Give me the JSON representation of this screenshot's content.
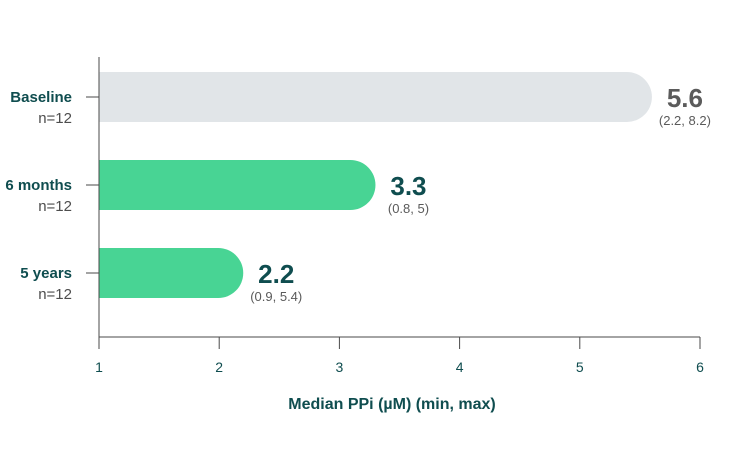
{
  "chart_data": {
    "type": "bar",
    "orientation": "horizontal",
    "categories": [
      "Baseline",
      "6 months",
      "5 years"
    ],
    "category_sublabels": [
      "n=12",
      "n=12",
      "n=12"
    ],
    "values": [
      5.6,
      3.3,
      2.2
    ],
    "value_labels": [
      "5.6",
      "3.3",
      "2.2"
    ],
    "range_labels": [
      "(2.2, 8.2)",
      "(0.8, 5)",
      "(0.9, 5.4)"
    ],
    "bar_colors": [
      "#e1e5e8",
      "#48d494",
      "#48d494"
    ],
    "value_label_colors": [
      "#5b5b5b",
      "#0f4d4f",
      "#0f4d4f"
    ],
    "xlabel": "Median PPi (µM) (min, max)",
    "xlim": [
      1,
      6
    ],
    "xticks": [
      "1",
      "2",
      "3",
      "4",
      "5",
      "6"
    ],
    "grid": false
  }
}
